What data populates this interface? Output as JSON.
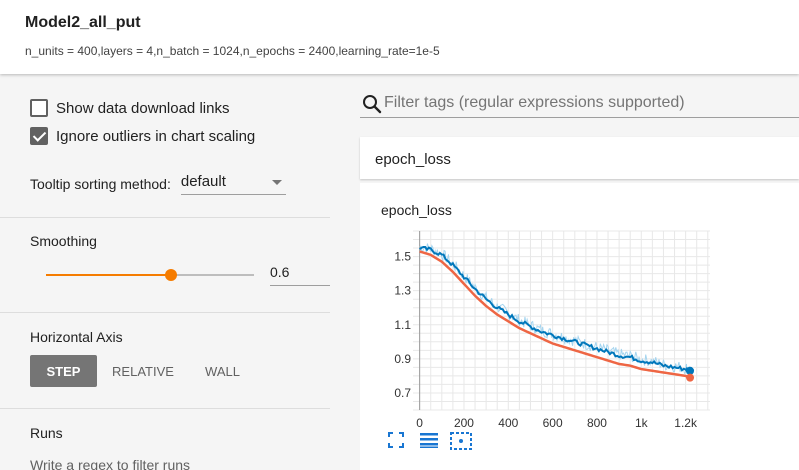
{
  "header": {
    "title": "Model2_all_put",
    "subtitle": "n_units = 400,layers = 4,n_batch = 1024,n_epochs = 2400,learning_rate=1e-5"
  },
  "sidebar": {
    "show_download_label": "Show data download links",
    "show_download_checked": false,
    "ignore_outliers_label": "Ignore outliers in chart scaling",
    "ignore_outliers_checked": true,
    "tooltip_label": "Tooltip sorting method:",
    "tooltip_value": "default",
    "smoothing_label": "Smoothing",
    "smoothing_value": "0.6",
    "smoothing_fraction": 0.6,
    "horizontal_axis_label": "Horizontal Axis",
    "axis_options": [
      "STEP",
      "RELATIVE",
      "WALL"
    ],
    "axis_selected": "STEP",
    "runs_label": "Runs",
    "runs_filter_placeholder": "Write a regex to filter runs"
  },
  "main": {
    "search_placeholder": "Filter tags (regular expressions supported)",
    "group_name": "epoch_loss",
    "card_title": "epoch_loss"
  },
  "colors": {
    "accent": "#f57c00",
    "series_blue": "#0077bb",
    "series_blue_raw": "#a6d5ef",
    "series_orange": "#ee6644",
    "tool_icons": "#1976d2"
  },
  "icons": [
    "search-icon",
    "fit-domain-icon",
    "toggle-log-scale-icon",
    "select-box-icon",
    "chevron-down-icon",
    "check-icon"
  ],
  "chart_data": {
    "type": "line",
    "title": "epoch_loss",
    "xlabel": "",
    "ylabel": "",
    "xlim": [
      -30,
      1310
    ],
    "ylim": [
      0.6,
      1.65
    ],
    "x_ticks": [
      "0",
      "200",
      "400",
      "600",
      "800",
      "1k",
      "1.2k"
    ],
    "x_tick_values": [
      0,
      200,
      400,
      600,
      800,
      1000,
      1200
    ],
    "y_ticks": [
      "0.7",
      "0.9",
      "1.1",
      "1.3",
      "1.5"
    ],
    "y_tick_values": [
      0.7,
      0.9,
      1.1,
      1.3,
      1.5
    ],
    "grid": true,
    "series": [
      {
        "color": "#0077bb",
        "x": [
          0,
          50,
          100,
          150,
          200,
          250,
          300,
          350,
          400,
          450,
          500,
          550,
          600,
          650,
          700,
          750,
          800,
          850,
          900,
          950,
          1000,
          1050,
          1100,
          1150,
          1200,
          1220
        ],
        "y": [
          1.55,
          1.54,
          1.51,
          1.45,
          1.38,
          1.31,
          1.25,
          1.2,
          1.16,
          1.12,
          1.09,
          1.06,
          1.04,
          1.02,
          1.0,
          0.98,
          0.96,
          0.94,
          0.92,
          0.91,
          0.89,
          0.88,
          0.86,
          0.85,
          0.84,
          0.83
        ]
      },
      {
        "color": "#ee6644",
        "x": [
          0,
          50,
          100,
          150,
          200,
          250,
          300,
          350,
          400,
          450,
          500,
          550,
          600,
          650,
          700,
          750,
          800,
          850,
          900,
          950,
          1000,
          1050,
          1100,
          1150,
          1200,
          1220
        ],
        "y": [
          1.53,
          1.51,
          1.47,
          1.41,
          1.34,
          1.27,
          1.21,
          1.16,
          1.12,
          1.08,
          1.05,
          1.02,
          0.99,
          0.97,
          0.95,
          0.93,
          0.91,
          0.89,
          0.87,
          0.86,
          0.84,
          0.83,
          0.82,
          0.81,
          0.8,
          0.79
        ]
      }
    ]
  }
}
